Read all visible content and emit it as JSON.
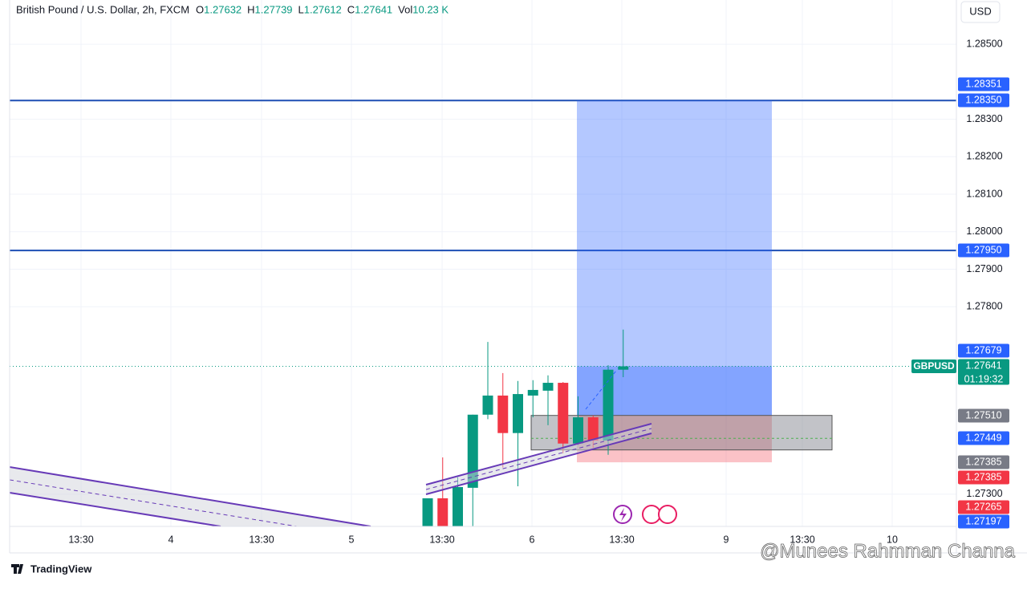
{
  "chart_data": {
    "type": "candlestick",
    "title": "British Pound / U.S. Dollar, 2h, FXCM",
    "ohlc_legend": [
      {
        "label": "O",
        "value": "1.27632"
      },
      {
        "label": "H",
        "value": "1.27739"
      },
      {
        "label": "L",
        "value": "1.27612"
      },
      {
        "label": "C",
        "value": "1.27641"
      },
      {
        "label": "Vol",
        "value": "10.23 K"
      }
    ],
    "currency": "USD",
    "symbol": "GBPUSD",
    "countdown": "01:19:32",
    "up_color": "#089981",
    "down_color": "#f23645",
    "open": [
      1.272,
      1.27289,
      1.2721,
      1.27317,
      1.27512,
      1.27563,
      1.27463,
      1.27563,
      1.27576,
      1.27597,
      1.27435,
      1.27505,
      1.27443,
      1.27632
    ],
    "high": [
      1.27289,
      1.27398,
      1.27345,
      1.27512,
      1.27706,
      1.27623,
      1.27602,
      1.27604,
      1.27617,
      1.27599,
      1.27561,
      1.2751,
      1.27644,
      1.27739
    ],
    "low": [
      1.272,
      1.272,
      1.2721,
      1.27214,
      1.275,
      1.27371,
      1.27321,
      1.27505,
      1.27484,
      1.27409,
      1.27431,
      1.27424,
      1.27405,
      1.27612
    ],
    "close": [
      1.27289,
      1.272,
      1.27319,
      1.27512,
      1.27563,
      1.27463,
      1.27567,
      1.27578,
      1.27597,
      1.27435,
      1.27505,
      1.27443,
      1.27632,
      1.27641
    ],
    "ylim": [
      1.27214,
      1.28618
    ],
    "yticks": [
      {
        "value": 1.285,
        "label": "1.28500"
      },
      {
        "value": 1.283,
        "label": "1.28300"
      },
      {
        "value": 1.282,
        "label": "1.28200"
      },
      {
        "value": 1.281,
        "label": "1.28100"
      },
      {
        "value": 1.28,
        "label": "1.28000"
      },
      {
        "value": 1.279,
        "label": "1.27900"
      },
      {
        "value": 1.278,
        "label": "1.27800"
      },
      {
        "value": 1.273,
        "label": "1.27300"
      }
    ],
    "grid": true,
    "xlabels": [
      "13:30",
      "4",
      "13:30",
      "5",
      "13:30",
      "6",
      "13:30",
      "9",
      "13:30",
      "10"
    ],
    "horizontal_lines": [
      1.2835,
      1.2795
    ],
    "position": {
      "entry": 1.2751,
      "target": 1.2835,
      "stop": 1.27385,
      "current": 1.27641
    },
    "range_box": {
      "top": 1.2751,
      "bottom": 1.27418,
      "mid": 1.27449
    },
    "price_labels": [
      {
        "value": 1.28351,
        "label": "1.28351",
        "color": "#2962ff"
      },
      {
        "value": 1.2835,
        "label": "1.28350",
        "color": "#2962ff"
      },
      {
        "value": 1.2795,
        "label": "1.27950",
        "color": "#2962ff"
      },
      {
        "value": 1.27679,
        "label": "1.27679",
        "color": "#2962ff"
      },
      {
        "value": 1.27641,
        "label": "1.27641",
        "color": "#089981"
      },
      {
        "value": 1.2751,
        "label": "1.27510",
        "color": "#787b86"
      },
      {
        "value": 1.27449,
        "label": "1.27449",
        "color": "#2962ff"
      },
      {
        "value": 1.27385,
        "label": "1.27385",
        "color": "#787b86"
      },
      {
        "value": 1.27385,
        "label": "1.27385",
        "color": "#f23645"
      },
      {
        "value": 1.27265,
        "label": "1.27265",
        "color": "#f23645"
      },
      {
        "value": 1.27197,
        "label": "1.27197",
        "color": "#2962ff"
      }
    ],
    "branding": "TradingView",
    "watermark": "@Munees Rahmman Channa"
  }
}
